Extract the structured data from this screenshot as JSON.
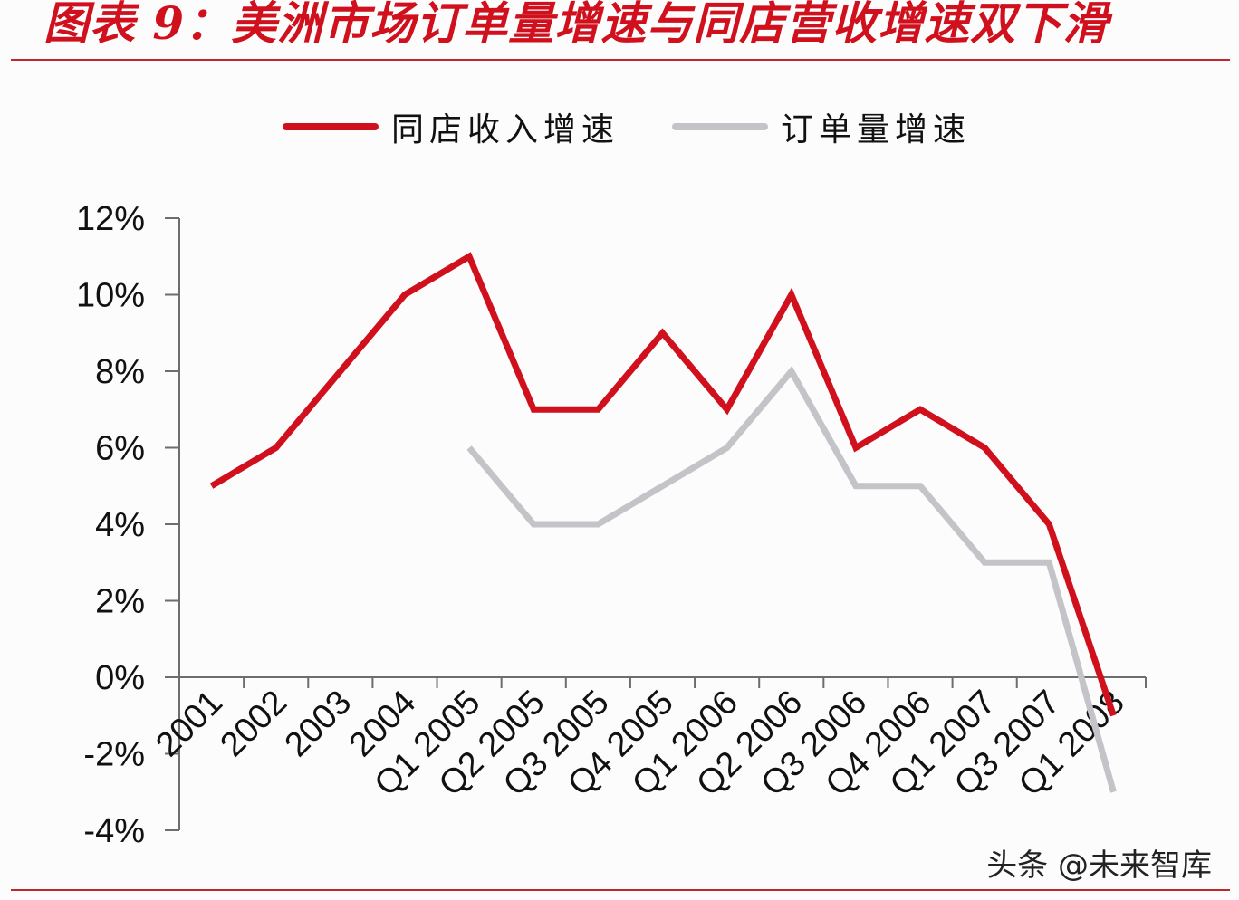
{
  "header": {
    "title": "图表 9：美洲市场订单量增速与同店营收增速双下滑"
  },
  "legend": {
    "items": [
      {
        "label": "同店收入增速",
        "color": "#d0101c"
      },
      {
        "label": "订单量增速",
        "color": "#c4c4c8"
      }
    ]
  },
  "watermark": "头条 @未来智库",
  "colors": {
    "accent": "#d0101c",
    "series_red": "#d0101c",
    "series_gray": "#c4c4c8",
    "axis": "#6d6d6d"
  },
  "chart_data": {
    "type": "line",
    "title": "图表 9：美洲市场订单量增速与同店营收增速双下滑",
    "xlabel": "",
    "ylabel": "",
    "categories": [
      "2001",
      "2002",
      "2003",
      "2004",
      "Q1 2005",
      "Q2 2005",
      "Q3 2005",
      "Q4 2005",
      "Q1 2006",
      "Q2 2006",
      "Q3 2006",
      "Q4 2006",
      "Q1 2007",
      "Q3 2007",
      "Q1 2008"
    ],
    "series": [
      {
        "name": "同店收入增速",
        "color": "#d0101c",
        "values": [
          5,
          6,
          8,
          10,
          11,
          7,
          7,
          9,
          7,
          10,
          6,
          7,
          6,
          4,
          -1
        ]
      },
      {
        "name": "订单量增速",
        "color": "#c4c4c8",
        "values": [
          null,
          null,
          null,
          null,
          6,
          4,
          4,
          5,
          6,
          8,
          5,
          5,
          3,
          3,
          -3
        ]
      }
    ],
    "yticks": [
      "12%",
      "10%",
      "8%",
      "6%",
      "4%",
      "2%",
      "0%",
      "-2%",
      "-4%"
    ],
    "ylim": [
      -4,
      12
    ],
    "grid": false,
    "legend_position": "top"
  }
}
